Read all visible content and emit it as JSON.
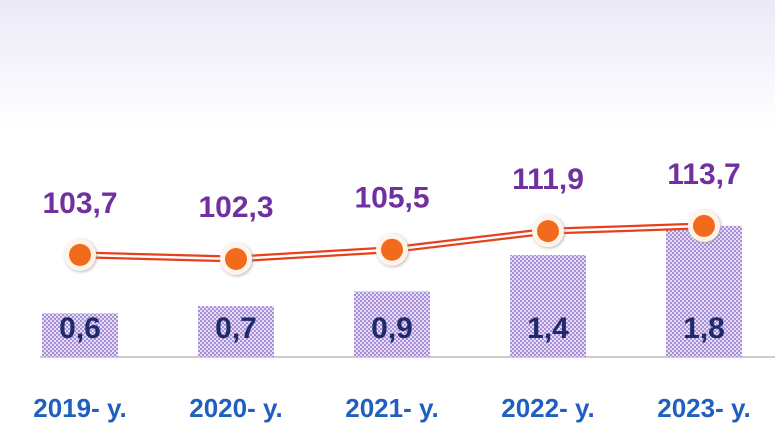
{
  "chart_data": {
    "type": "bar",
    "categories": [
      "2019- y.",
      "2020- y.",
      "2021- y.",
      "2022- y.",
      "2023- y."
    ],
    "values": [
      0.6,
      0.7,
      0.9,
      1.4,
      1.8
    ],
    "value_labels": [
      "0,6",
      "0,7",
      "0,9",
      "1,4",
      "1,8"
    ],
    "color": "#c7b6e6",
    "ylim": [
      0,
      4.9
    ],
    "line": {
      "type": "line",
      "values": [
        103.7,
        102.3,
        105.5,
        111.9,
        113.7
      ],
      "value_labels": [
        "103,7",
        "102,3",
        "105,5",
        "111,9",
        "113,7"
      ],
      "color": "#e8401c",
      "marker_color": "#f26b1d",
      "axis": "y2"
    },
    "y2lim": [
      68.5,
      191.6
    ]
  }
}
